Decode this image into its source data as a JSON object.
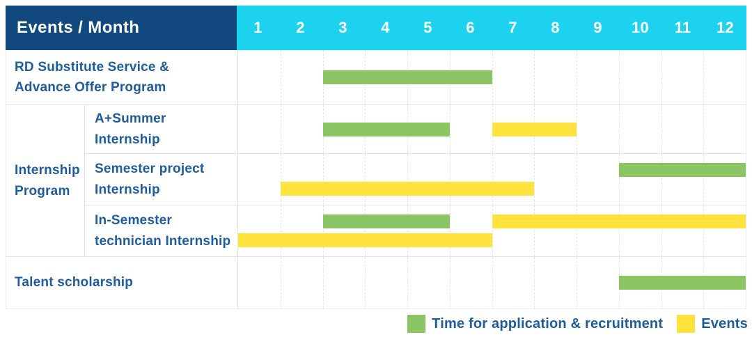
{
  "header": {
    "label": "Events / Month",
    "months": [
      "1",
      "2",
      "3",
      "4",
      "5",
      "6",
      "7",
      "8",
      "9",
      "10",
      "11",
      "12"
    ]
  },
  "colors": {
    "header_bg": "#11497E",
    "months_bg": "#1CD2EE",
    "header_text": "#FFFFFF",
    "label_text": "#1D5C9E",
    "application": "#8BC564",
    "event": "#FFE23E"
  },
  "legend": {
    "items": [
      {
        "label": "Time for application & recruitment",
        "type": "application"
      },
      {
        "label": "Events",
        "type": "event"
      }
    ]
  },
  "chart_data": {
    "type": "gantt",
    "x_unit": "month",
    "x_range": [
      1,
      12
    ],
    "bar_types": {
      "application": "Time for application & recruitment",
      "event": "Events"
    },
    "rows": [
      {
        "group": null,
        "label_lines": [
          "RD Substitute Service &",
          "Advance Offer Program"
        ],
        "lines": [
          [
            {
              "type": "application",
              "start_month": 3,
              "end_month": 6
            }
          ]
        ]
      },
      {
        "group": "Internship Program",
        "group_lines": [
          "Internship",
          "Program"
        ],
        "label_lines": [
          "A+Summer",
          "Internship"
        ],
        "lines": [
          [
            {
              "type": "application",
              "start_month": 3,
              "end_month": 5
            },
            {
              "type": "event",
              "start_month": 7,
              "end_month": 8
            }
          ]
        ]
      },
      {
        "group": "Internship Program",
        "label_lines": [
          "Semester project",
          "Internship"
        ],
        "lines": [
          [
            {
              "type": "application",
              "start_month": 10,
              "end_month": 12
            }
          ],
          [
            {
              "type": "event",
              "start_month": 2,
              "end_month": 7
            }
          ]
        ]
      },
      {
        "group": "Internship Program",
        "label_lines": [
          "In-Semester",
          "technician Internship"
        ],
        "lines": [
          [
            {
              "type": "application",
              "start_month": 3,
              "end_month": 5
            },
            {
              "type": "event",
              "start_month": 7,
              "end_month": 12
            }
          ],
          [
            {
              "type": "event",
              "start_month": 1,
              "end_month": 6
            }
          ]
        ]
      },
      {
        "group": null,
        "label_lines": [
          "Talent scholarship"
        ],
        "lines": [
          [
            {
              "type": "application",
              "start_month": 10,
              "end_month": 12
            }
          ]
        ]
      }
    ]
  }
}
